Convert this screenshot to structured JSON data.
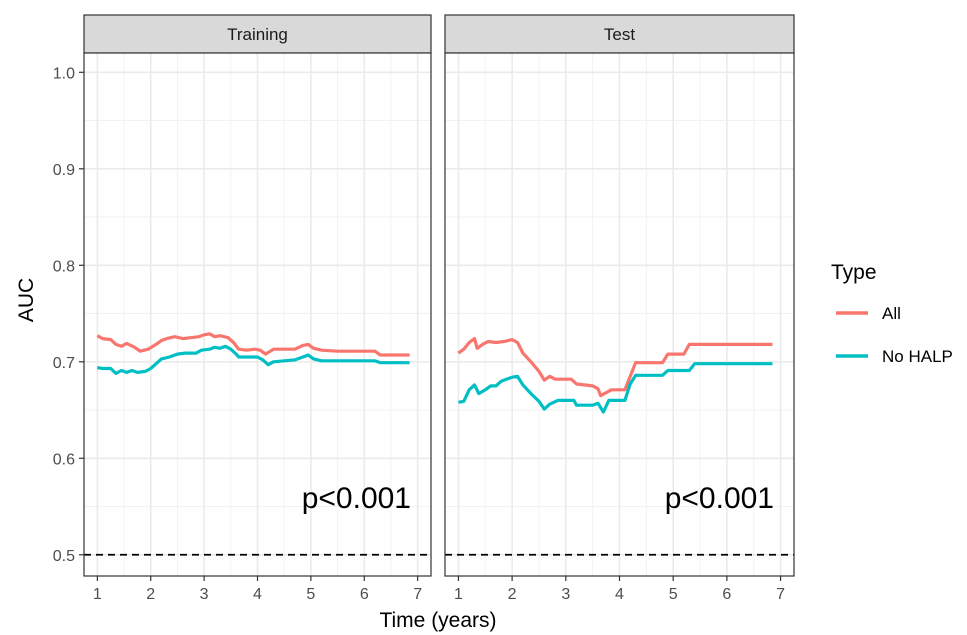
{
  "chart_data": {
    "type": "line",
    "xlabel": "Time (years)",
    "ylabel": "AUC",
    "xlim": [
      0.75,
      7.25
    ],
    "ylim": [
      0.478,
      1.02
    ],
    "x_ticks": [
      1,
      2,
      3,
      4,
      5,
      6,
      7
    ],
    "y_ticks": [
      0.5,
      0.6,
      0.7,
      0.8,
      0.9,
      1.0
    ],
    "y_tick_labels": [
      "0.5",
      "0.6",
      "0.7",
      "0.8",
      "0.9",
      "1.0"
    ],
    "grid": true,
    "reference_line": {
      "y": 0.5,
      "style": "dashed",
      "color": "#000000"
    },
    "legend": {
      "title": "Type",
      "position": "right",
      "entries": [
        {
          "name": "All",
          "color": "#F8766D"
        },
        {
          "name": "No HALP",
          "color": "#00BFC4"
        }
      ]
    },
    "panels": [
      {
        "title": "Training",
        "annotation": "p<0.001",
        "series": [
          {
            "name": "All",
            "color": "#F8766D",
            "points": [
              [
                1.0,
                0.727
              ],
              [
                1.1,
                0.724
              ],
              [
                1.25,
                0.723
              ],
              [
                1.35,
                0.718
              ],
              [
                1.45,
                0.716
              ],
              [
                1.55,
                0.719
              ],
              [
                1.7,
                0.715
              ],
              [
                1.8,
                0.711
              ],
              [
                1.95,
                0.713
              ],
              [
                2.1,
                0.718
              ],
              [
                2.2,
                0.722
              ],
              [
                2.3,
                0.724
              ],
              [
                2.45,
                0.726
              ],
              [
                2.6,
                0.724
              ],
              [
                2.75,
                0.725
              ],
              [
                2.9,
                0.726
              ],
              [
                3.0,
                0.728
              ],
              [
                3.1,
                0.729
              ],
              [
                3.2,
                0.726
              ],
              [
                3.3,
                0.727
              ],
              [
                3.45,
                0.725
              ],
              [
                3.55,
                0.72
              ],
              [
                3.65,
                0.713
              ],
              [
                3.8,
                0.712
              ],
              [
                3.95,
                0.713
              ],
              [
                4.05,
                0.712
              ],
              [
                4.15,
                0.708
              ],
              [
                4.3,
                0.713
              ],
              [
                4.5,
                0.713
              ],
              [
                4.7,
                0.713
              ],
              [
                4.85,
                0.717
              ],
              [
                4.95,
                0.718
              ],
              [
                5.05,
                0.714
              ],
              [
                5.2,
                0.712
              ],
              [
                5.5,
                0.711
              ],
              [
                5.8,
                0.711
              ],
              [
                6.2,
                0.711
              ],
              [
                6.3,
                0.707
              ],
              [
                6.85,
                0.707
              ]
            ]
          },
          {
            "name": "No HALP",
            "color": "#00BFC4",
            "points": [
              [
                1.0,
                0.694
              ],
              [
                1.1,
                0.693
              ],
              [
                1.25,
                0.693
              ],
              [
                1.35,
                0.688
              ],
              [
                1.45,
                0.691
              ],
              [
                1.55,
                0.689
              ],
              [
                1.65,
                0.691
              ],
              [
                1.75,
                0.689
              ],
              [
                1.9,
                0.69
              ],
              [
                2.0,
                0.693
              ],
              [
                2.1,
                0.698
              ],
              [
                2.2,
                0.703
              ],
              [
                2.35,
                0.705
              ],
              [
                2.5,
                0.708
              ],
              [
                2.65,
                0.709
              ],
              [
                2.85,
                0.709
              ],
              [
                2.95,
                0.712
              ],
              [
                3.1,
                0.713
              ],
              [
                3.2,
                0.715
              ],
              [
                3.3,
                0.714
              ],
              [
                3.4,
                0.716
              ],
              [
                3.5,
                0.713
              ],
              [
                3.6,
                0.708
              ],
              [
                3.65,
                0.705
              ],
              [
                3.8,
                0.705
              ],
              [
                4.0,
                0.705
              ],
              [
                4.1,
                0.702
              ],
              [
                4.2,
                0.697
              ],
              [
                4.3,
                0.7
              ],
              [
                4.5,
                0.701
              ],
              [
                4.7,
                0.702
              ],
              [
                4.85,
                0.705
              ],
              [
                4.95,
                0.707
              ],
              [
                5.05,
                0.703
              ],
              [
                5.2,
                0.701
              ],
              [
                5.5,
                0.701
              ],
              [
                5.8,
                0.701
              ],
              [
                6.2,
                0.701
              ],
              [
                6.3,
                0.699
              ],
              [
                6.85,
                0.699
              ]
            ]
          }
        ]
      },
      {
        "title": "Test",
        "annotation": "p<0.001",
        "series": [
          {
            "name": "All",
            "color": "#F8766D",
            "points": [
              [
                1.0,
                0.709
              ],
              [
                1.1,
                0.713
              ],
              [
                1.2,
                0.72
              ],
              [
                1.3,
                0.724
              ],
              [
                1.35,
                0.714
              ],
              [
                1.45,
                0.718
              ],
              [
                1.55,
                0.721
              ],
              [
                1.7,
                0.72
              ],
              [
                1.85,
                0.721
              ],
              [
                2.0,
                0.723
              ],
              [
                2.1,
                0.72
              ],
              [
                2.2,
                0.709
              ],
              [
                2.35,
                0.7
              ],
              [
                2.5,
                0.69
              ],
              [
                2.6,
                0.681
              ],
              [
                2.7,
                0.685
              ],
              [
                2.8,
                0.682
              ],
              [
                3.1,
                0.682
              ],
              [
                3.2,
                0.677
              ],
              [
                3.5,
                0.675
              ],
              [
                3.6,
                0.672
              ],
              [
                3.65,
                0.665
              ],
              [
                3.75,
                0.668
              ],
              [
                3.85,
                0.671
              ],
              [
                4.1,
                0.671
              ],
              [
                4.2,
                0.685
              ],
              [
                4.3,
                0.699
              ],
              [
                4.8,
                0.699
              ],
              [
                4.9,
                0.708
              ],
              [
                5.2,
                0.708
              ],
              [
                5.3,
                0.718
              ],
              [
                6.85,
                0.718
              ]
            ]
          },
          {
            "name": "No HALP",
            "color": "#00BFC4",
            "points": [
              [
                1.0,
                0.658
              ],
              [
                1.1,
                0.659
              ],
              [
                1.2,
                0.671
              ],
              [
                1.3,
                0.676
              ],
              [
                1.38,
                0.667
              ],
              [
                1.5,
                0.671
              ],
              [
                1.6,
                0.675
              ],
              [
                1.7,
                0.675
              ],
              [
                1.8,
                0.68
              ],
              [
                2.0,
                0.684
              ],
              [
                2.1,
                0.685
              ],
              [
                2.2,
                0.676
              ],
              [
                2.35,
                0.667
              ],
              [
                2.5,
                0.659
              ],
              [
                2.6,
                0.651
              ],
              [
                2.7,
                0.656
              ],
              [
                2.85,
                0.66
              ],
              [
                3.15,
                0.66
              ],
              [
                3.2,
                0.655
              ],
              [
                3.5,
                0.655
              ],
              [
                3.6,
                0.657
              ],
              [
                3.7,
                0.648
              ],
              [
                3.8,
                0.66
              ],
              [
                4.1,
                0.66
              ],
              [
                4.2,
                0.677
              ],
              [
                4.3,
                0.686
              ],
              [
                4.8,
                0.686
              ],
              [
                4.9,
                0.691
              ],
              [
                5.3,
                0.691
              ],
              [
                5.4,
                0.698
              ],
              [
                6.85,
                0.698
              ]
            ]
          }
        ]
      }
    ]
  }
}
